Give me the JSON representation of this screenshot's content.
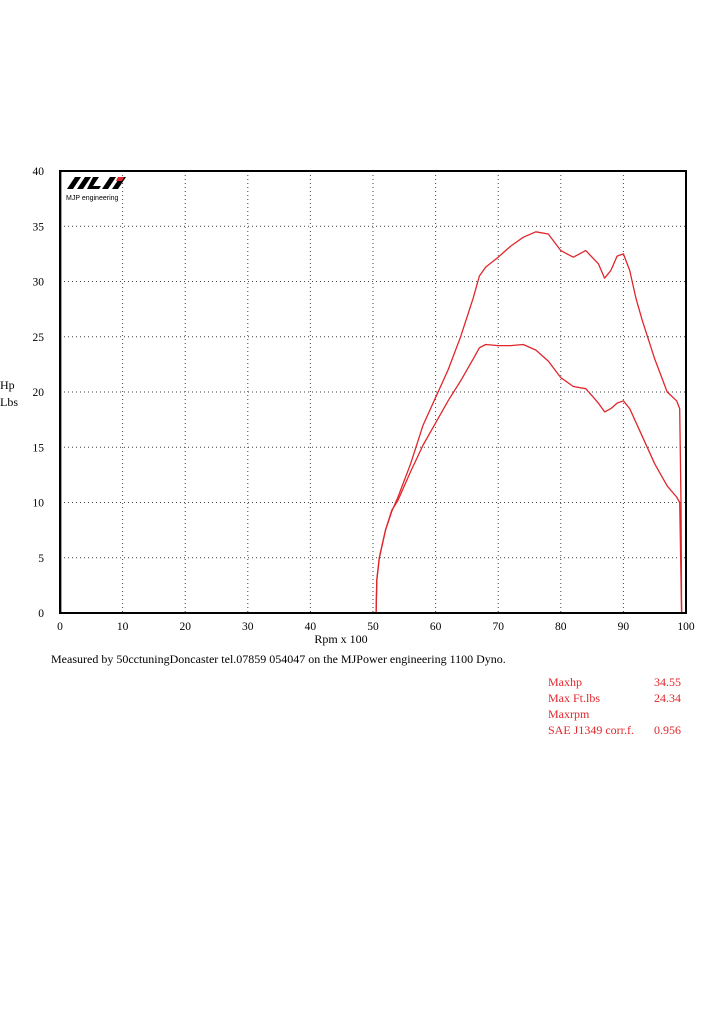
{
  "chart_data": {
    "type": "line",
    "x_ticks": [
      "0",
      "10",
      "20",
      "30",
      "40",
      "50",
      "60",
      "70",
      "80",
      "90",
      "100"
    ],
    "y_ticks": [
      "0",
      "5",
      "10",
      "15",
      "20",
      "25",
      "30",
      "35",
      "40"
    ],
    "xlim": [
      0,
      100
    ],
    "ylim": [
      0,
      40
    ],
    "xlabel": "Rpm x 100",
    "ylabel_top": "Hp",
    "ylabel_bottom": "Lbs",
    "grid": true,
    "line_color": "#e0262b",
    "series": [
      {
        "values": [
          [
            0,
            0
          ],
          [
            50.5,
            0
          ],
          [
            50.6,
            3
          ],
          [
            51,
            5
          ],
          [
            52,
            7.5
          ],
          [
            53,
            9.2
          ],
          [
            54,
            10.5
          ],
          [
            56,
            13.5
          ],
          [
            58,
            17
          ],
          [
            60,
            19.5
          ],
          [
            62,
            22
          ],
          [
            64,
            25
          ],
          [
            66,
            28.5
          ],
          [
            67,
            30.5
          ],
          [
            68,
            31.3
          ],
          [
            70,
            32.2
          ],
          [
            72,
            33.2
          ],
          [
            74,
            34
          ],
          [
            76,
            34.5
          ],
          [
            78,
            34.3
          ],
          [
            80,
            32.8
          ],
          [
            82,
            32.2
          ],
          [
            84,
            32.8
          ],
          [
            86,
            31.6
          ],
          [
            87,
            30.3
          ],
          [
            88,
            31
          ],
          [
            89,
            32.3
          ],
          [
            90,
            32.5
          ],
          [
            91,
            31
          ],
          [
            92,
            28.5
          ],
          [
            93,
            26.5
          ],
          [
            95,
            23
          ],
          [
            97,
            20
          ],
          [
            98.5,
            19.2
          ],
          [
            99,
            18.5
          ],
          [
            99.2,
            10
          ],
          [
            99.3,
            0
          ],
          [
            100,
            0
          ]
        ]
      },
      {
        "values": [
          [
            0,
            0
          ],
          [
            50.5,
            0
          ],
          [
            50.6,
            3
          ],
          [
            51,
            5
          ],
          [
            52,
            7.5
          ],
          [
            53,
            9.3
          ],
          [
            54,
            10.2
          ],
          [
            56,
            12.8
          ],
          [
            58,
            15.2
          ],
          [
            60,
            17.2
          ],
          [
            62,
            19.2
          ],
          [
            64,
            21
          ],
          [
            66,
            23
          ],
          [
            67,
            24
          ],
          [
            68,
            24.3
          ],
          [
            70,
            24.2
          ],
          [
            72,
            24.2
          ],
          [
            74,
            24.3
          ],
          [
            76,
            23.8
          ],
          [
            78,
            22.8
          ],
          [
            80,
            21.3
          ],
          [
            82,
            20.5
          ],
          [
            84,
            20.3
          ],
          [
            86,
            19
          ],
          [
            87,
            18.2
          ],
          [
            88,
            18.5
          ],
          [
            89,
            19
          ],
          [
            90,
            19.2
          ],
          [
            91,
            18.5
          ],
          [
            93,
            16
          ],
          [
            95,
            13.5
          ],
          [
            97,
            11.5
          ],
          [
            98.5,
            10.5
          ],
          [
            99,
            10
          ],
          [
            99.3,
            0
          ],
          [
            100,
            0
          ]
        ]
      }
    ]
  },
  "logo": {
    "mark": "MJP",
    "name": "MJP engineering"
  },
  "note": "Measured by 50cctuningDoncaster tel.07859 054047 on the MJPower engineering 1100 Dyno.",
  "stats": [
    {
      "label": "Maxhp",
      "value": "34.55"
    },
    {
      "label": "Max Ft.lbs",
      "value": "24.34"
    },
    {
      "label": "Maxrpm",
      "value": ""
    },
    {
      "label": "SAE J1349 corr.f.",
      "value": "0.956"
    }
  ],
  "stats_color": "#e0262b"
}
